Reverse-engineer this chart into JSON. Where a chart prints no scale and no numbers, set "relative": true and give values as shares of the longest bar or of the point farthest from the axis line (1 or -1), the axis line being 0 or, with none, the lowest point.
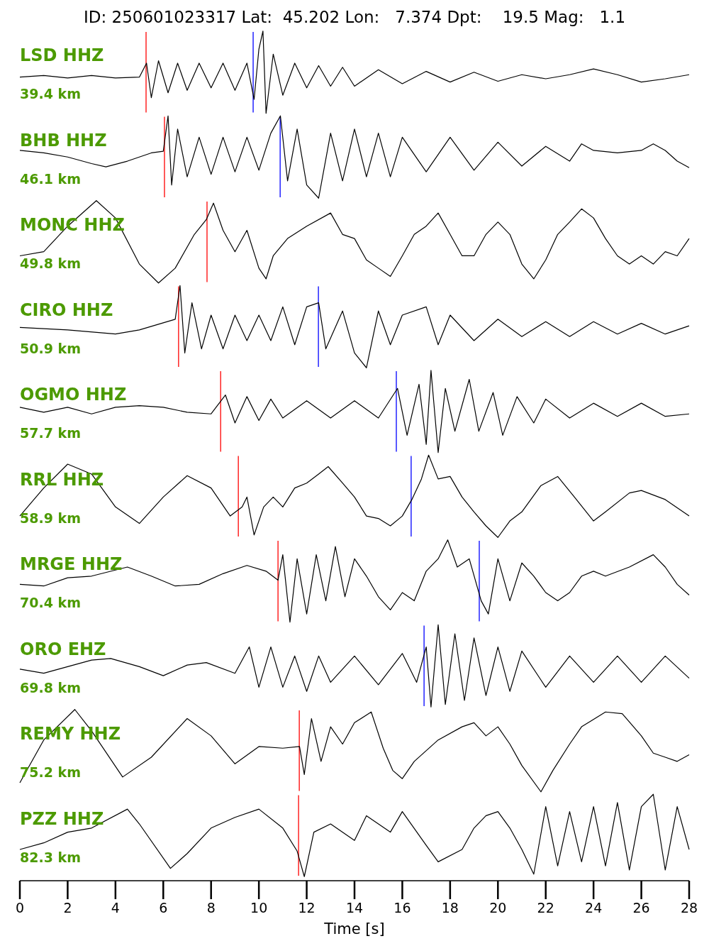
{
  "chart_data": [
    {
      "type": "line",
      "title": "ID: 250601023317 Lat:  45.202 Lon:   7.374 Dpt:    19.5 Mag:   1.1",
      "relative": true,
      "xlim": [
        0,
        28
      ],
      "tick_labels": false,
      "annotations": [
        "LSD HHZ",
        "39.4 km"
      ],
      "ref_lines": [
        {
          "axis": "x",
          "value": 5.28,
          "color": "#ff0000"
        },
        {
          "axis": "x",
          "value": 9.76,
          "color": "#0000ff"
        }
      ],
      "series": [
        {
          "color": "#000000",
          "x": [
            0,
            1,
            2,
            3,
            4,
            5,
            5.3,
            5.5,
            5.8,
            6.2,
            6.6,
            7,
            7.5,
            8,
            8.5,
            9,
            9.5,
            9.8,
            10,
            10.17,
            10.3,
            10.6,
            11,
            11.5,
            12,
            12.5,
            13,
            13.5,
            14,
            15,
            16,
            17,
            18,
            19,
            20,
            21,
            22,
            23,
            24,
            25,
            26,
            27,
            28
          ],
          "values": [
            0.44,
            0.46,
            0.43,
            0.46,
            0.43,
            0.44,
            0.61,
            0.19,
            0.64,
            0.25,
            0.61,
            0.28,
            0.61,
            0.31,
            0.61,
            0.28,
            0.61,
            0.17,
            0.78,
            1,
            0,
            0.72,
            0.22,
            0.61,
            0.31,
            0.58,
            0.33,
            0.56,
            0.33,
            0.53,
            0.36,
            0.51,
            0.38,
            0.5,
            0.39,
            0.47,
            0.42,
            0.47,
            0.54,
            0.47,
            0.38,
            0.42,
            0.47
          ]
        }
      ]
    },
    {
      "type": "line",
      "relative": true,
      "xlim": [
        0,
        28
      ],
      "tick_labels": false,
      "annotations": [
        "BHB HHZ",
        "46.1 km"
      ],
      "ref_lines": [
        {
          "axis": "x",
          "value": 6.05,
          "color": "#ff0000"
        },
        {
          "axis": "x",
          "value": 10.89,
          "color": "#0000ff"
        }
      ],
      "series": [
        {
          "color": "#000000",
          "x": [
            0,
            1,
            2,
            3,
            3.6,
            4.5,
            5.5,
            6,
            6.2,
            6.35,
            6.6,
            7,
            7.5,
            8,
            8.5,
            9,
            9.5,
            10,
            10.5,
            10.9,
            11.2,
            11.6,
            12,
            12.5,
            13,
            13.5,
            14,
            14.5,
            15,
            15.5,
            16,
            17,
            18,
            19,
            20,
            21,
            22,
            23,
            23.5,
            24,
            25,
            26,
            26.5,
            27,
            27.5,
            28
          ],
          "values": [
            0.58,
            0.55,
            0.5,
            0.42,
            0.38,
            0.45,
            0.55,
            0.57,
            1,
            0.16,
            0.84,
            0.26,
            0.74,
            0.29,
            0.74,
            0.32,
            0.74,
            0.34,
            0.79,
            1,
            0.21,
            0.84,
            0.16,
            0,
            0.79,
            0.21,
            0.84,
            0.26,
            0.79,
            0.26,
            0.74,
            0.32,
            0.74,
            0.34,
            0.68,
            0.39,
            0.63,
            0.45,
            0.66,
            0.58,
            0.55,
            0.58,
            0.66,
            0.58,
            0.45,
            0.37
          ]
        }
      ]
    },
    {
      "type": "line",
      "relative": true,
      "xlim": [
        0,
        28
      ],
      "tick_labels": false,
      "annotations": [
        "MONC HHZ",
        "49.8 km"
      ],
      "ref_lines": [
        {
          "axis": "x",
          "value": 7.83,
          "color": "#ff0000"
        }
      ],
      "series": [
        {
          "color": "#000000",
          "x": [
            0,
            1,
            2,
            3.2,
            4,
            5,
            5.8,
            6.5,
            7.3,
            7.8,
            8.1,
            8.5,
            9,
            9.5,
            10,
            10.3,
            10.6,
            11.2,
            12,
            13,
            13.5,
            14,
            14.5,
            15,
            15.5,
            16,
            16.5,
            17,
            17.5,
            18,
            18.5,
            19,
            19.5,
            20,
            20.5,
            21,
            21.5,
            22,
            22.5,
            23,
            23.5,
            24,
            24.5,
            25,
            25.5,
            26,
            26.5,
            27,
            27.5,
            28
          ],
          "values": [
            0.33,
            0.38,
            0.69,
            1,
            0.79,
            0.23,
            0,
            0.18,
            0.59,
            0.77,
            0.97,
            0.64,
            0.38,
            0.64,
            0.18,
            0.05,
            0.33,
            0.54,
            0.69,
            0.85,
            0.59,
            0.54,
            0.28,
            0.18,
            0.08,
            0.33,
            0.59,
            0.69,
            0.85,
            0.59,
            0.33,
            0.33,
            0.59,
            0.74,
            0.59,
            0.23,
            0.05,
            0.28,
            0.59,
            0.74,
            0.9,
            0.79,
            0.54,
            0.33,
            0.23,
            0.33,
            0.23,
            0.38,
            0.33,
            0.54
          ]
        }
      ]
    },
    {
      "type": "line",
      "relative": true,
      "xlim": [
        0,
        28
      ],
      "tick_labels": false,
      "annotations": [
        "CIRO HHZ",
        "50.9 km"
      ],
      "ref_lines": [
        {
          "axis": "x",
          "value": 6.64,
          "color": "#ff0000"
        },
        {
          "axis": "x",
          "value": 12.49,
          "color": "#0000ff"
        }
      ],
      "series": [
        {
          "color": "#000000",
          "x": [
            0,
            2,
            4,
            5,
            6.5,
            6.7,
            6.9,
            7.2,
            7.6,
            8,
            8.5,
            9,
            9.5,
            10,
            10.5,
            11,
            11.5,
            12,
            12.5,
            12.8,
            13.5,
            14,
            14.5,
            15,
            15.5,
            16,
            17,
            17.5,
            18,
            19,
            20,
            21,
            22,
            23,
            24,
            25,
            26,
            27,
            28
          ],
          "values": [
            0.49,
            0.46,
            0.41,
            0.46,
            0.59,
            1,
            0.18,
            0.79,
            0.23,
            0.64,
            0.23,
            0.64,
            0.33,
            0.64,
            0.33,
            0.74,
            0.28,
            0.74,
            0.79,
            0.23,
            0.69,
            0.18,
            0,
            0.69,
            0.28,
            0.64,
            0.74,
            0.28,
            0.64,
            0.33,
            0.59,
            0.38,
            0.56,
            0.38,
            0.56,
            0.41,
            0.54,
            0.41,
            0.51
          ]
        }
      ]
    },
    {
      "type": "line",
      "relative": true,
      "xlim": [
        0,
        28
      ],
      "tick_labels": false,
      "annotations": [
        "OGMO HHZ",
        "57.7 km"
      ],
      "ref_lines": [
        {
          "axis": "x",
          "value": 8.4,
          "color": "#ff0000"
        },
        {
          "axis": "x",
          "value": 15.75,
          "color": "#0000ff"
        }
      ],
      "series": [
        {
          "color": "#000000",
          "x": [
            0,
            1,
            2,
            3,
            4,
            5,
            6,
            7,
            8,
            8.6,
            9,
            9.5,
            10,
            10.5,
            11,
            12,
            13,
            14,
            15,
            15.8,
            16.2,
            16.7,
            17,
            17.2,
            17.5,
            17.8,
            18.2,
            18.8,
            19.2,
            19.8,
            20.2,
            20.8,
            21.5,
            22,
            23,
            24,
            25,
            26,
            27,
            28
          ],
          "values": [
            0.55,
            0.49,
            0.55,
            0.47,
            0.55,
            0.57,
            0.55,
            0.49,
            0.47,
            0.7,
            0.36,
            0.68,
            0.39,
            0.65,
            0.42,
            0.63,
            0.42,
            0.63,
            0.42,
            0.78,
            0.21,
            0.83,
            0.1,
            1,
            0,
            0.78,
            0.26,
            0.89,
            0.26,
            0.73,
            0.21,
            0.68,
            0.36,
            0.65,
            0.42,
            0.6,
            0.44,
            0.6,
            0.44,
            0.47
          ]
        }
      ]
    },
    {
      "type": "line",
      "relative": true,
      "xlim": [
        0,
        28
      ],
      "tick_labels": false,
      "annotations": [
        "RRL HHZ",
        "58.9 km"
      ],
      "ref_lines": [
        {
          "axis": "x",
          "value": 9.14,
          "color": "#ff0000"
        },
        {
          "axis": "x",
          "value": 16.37,
          "color": "#0000ff"
        }
      ],
      "series": [
        {
          "color": "#000000",
          "x": [
            0,
            1,
            2,
            3,
            4,
            5,
            6,
            7,
            8,
            8.8,
            9.3,
            9.5,
            9.8,
            10.2,
            10.6,
            11,
            11.5,
            12,
            12.5,
            12.9,
            13.5,
            14,
            14.5,
            15,
            15.5,
            16,
            16.4,
            16.8,
            17.1,
            17.5,
            18,
            18.5,
            19,
            19.5,
            20,
            20.5,
            21,
            21.8,
            22.5,
            23.2,
            24,
            24.5,
            25.5,
            26,
            27,
            28
          ],
          "values": [
            0.26,
            0.6,
            0.89,
            0.77,
            0.37,
            0.17,
            0.49,
            0.75,
            0.6,
            0.26,
            0.37,
            0.49,
            0.03,
            0.37,
            0.49,
            0.37,
            0.6,
            0.66,
            0.77,
            0.86,
            0.66,
            0.49,
            0.26,
            0.23,
            0.14,
            0.26,
            0.46,
            0.71,
            1,
            0.71,
            0.74,
            0.49,
            0.31,
            0.14,
            0,
            0.2,
            0.31,
            0.63,
            0.74,
            0.49,
            0.2,
            0.31,
            0.54,
            0.57,
            0.46,
            0.26
          ]
        }
      ]
    },
    {
      "type": "line",
      "relative": true,
      "xlim": [
        0,
        28
      ],
      "tick_labels": false,
      "annotations": [
        "MRGE HHZ",
        "70.4 km"
      ],
      "ref_lines": [
        {
          "axis": "x",
          "value": 10.8,
          "color": "#ff0000"
        },
        {
          "axis": "x",
          "value": 19.22,
          "color": "#0000ff"
        }
      ],
      "series": [
        {
          "color": "#000000",
          "x": [
            0,
            1,
            2,
            3,
            4.5,
            5.5,
            6.5,
            7.5,
            8.5,
            9.5,
            10.3,
            10.8,
            11,
            11.3,
            11.6,
            12,
            12.4,
            12.8,
            13.2,
            13.6,
            14,
            14.5,
            15,
            15.5,
            16,
            16.5,
            17,
            17.5,
            17.9,
            18.3,
            18.8,
            19.3,
            19.6,
            20,
            20.5,
            21,
            21.5,
            22,
            22.5,
            23,
            23.5,
            24,
            24.5,
            25.5,
            26.5,
            27,
            27.5,
            28
          ],
          "values": [
            0.46,
            0.44,
            0.54,
            0.56,
            0.67,
            0.56,
            0.44,
            0.46,
            0.59,
            0.69,
            0.62,
            0.51,
            0.82,
            0,
            0.77,
            0.1,
            0.82,
            0.26,
            0.92,
            0.31,
            0.77,
            0.56,
            0.31,
            0.15,
            0.36,
            0.26,
            0.62,
            0.77,
            1,
            0.67,
            0.77,
            0.26,
            0.1,
            0.77,
            0.26,
            0.72,
            0.56,
            0.36,
            0.26,
            0.36,
            0.56,
            0.62,
            0.56,
            0.67,
            0.82,
            0.67,
            0.46,
            0.33
          ]
        }
      ]
    },
    {
      "type": "line",
      "relative": true,
      "xlim": [
        0,
        28
      ],
      "tick_labels": false,
      "annotations": [
        "ORO EHZ",
        "69.8 km"
      ],
      "ref_lines": [
        {
          "axis": "x",
          "value": 16.91,
          "color": "#0000ff"
        }
      ],
      "series": [
        {
          "color": "#000000",
          "x": [
            0,
            1,
            2,
            3,
            3.8,
            5,
            6,
            7,
            7.8,
            9,
            9.6,
            10,
            10.5,
            11,
            11.5,
            12,
            12.5,
            13,
            14,
            15,
            16,
            16.6,
            17,
            17.2,
            17.5,
            17.8,
            18.2,
            18.6,
            19,
            19.5,
            20,
            20.5,
            21,
            22,
            23,
            24,
            25,
            26,
            27,
            28
          ],
          "values": [
            0.46,
            0.41,
            0.49,
            0.57,
            0.59,
            0.49,
            0.38,
            0.51,
            0.54,
            0.41,
            0.73,
            0.24,
            0.73,
            0.24,
            0.62,
            0.19,
            0.62,
            0.3,
            0.62,
            0.27,
            0.65,
            0.3,
            0.73,
            0,
            1,
            0.03,
            0.89,
            0.08,
            0.84,
            0.14,
            0.73,
            0.19,
            0.68,
            0.24,
            0.62,
            0.3,
            0.62,
            0.3,
            0.62,
            0.35
          ]
        }
      ]
    },
    {
      "type": "line",
      "relative": true,
      "xlim": [
        0,
        28
      ],
      "tick_labels": false,
      "annotations": [
        "REMY HHZ",
        "75.2 km"
      ],
      "ref_lines": [
        {
          "axis": "x",
          "value": 11.69,
          "color": "#ff0000"
        }
      ],
      "series": [
        {
          "color": "#000000",
          "x": [
            0,
            1,
            2.3,
            3,
            4.3,
            5.5,
            7,
            8,
            9,
            10,
            11,
            11.7,
            11.9,
            12.2,
            12.6,
            13,
            13.5,
            14,
            14.7,
            15.2,
            15.6,
            16,
            16.5,
            17.5,
            18.5,
            19,
            19.5,
            20,
            20.5,
            21,
            21.8,
            22.3,
            23,
            23.5,
            24.5,
            25.2,
            26,
            26.5,
            27,
            27.5,
            28
          ],
          "values": [
            0.11,
            0.63,
            1,
            0.74,
            0.18,
            0.42,
            0.89,
            0.68,
            0.34,
            0.55,
            0.53,
            0.55,
            0.21,
            0.89,
            0.37,
            0.79,
            0.58,
            0.84,
            0.97,
            0.53,
            0.26,
            0.16,
            0.37,
            0.63,
            0.79,
            0.84,
            0.68,
            0.79,
            0.58,
            0.32,
            0,
            0.26,
            0.58,
            0.79,
            0.97,
            0.95,
            0.68,
            0.47,
            0.42,
            0.37,
            0.45
          ]
        }
      ]
    },
    {
      "type": "line",
      "relative": true,
      "xlim": [
        0,
        28
      ],
      "xlabel": "Time [s]",
      "annotations": [
        "PZZ HHZ",
        "82.3 km"
      ],
      "ref_lines": [
        {
          "axis": "x",
          "value": 11.66,
          "color": "#ff0000"
        }
      ],
      "xticks": [
        0,
        2,
        4,
        6,
        8,
        10,
        12,
        14,
        16,
        18,
        20,
        22,
        24,
        26,
        28
      ],
      "series": [
        {
          "color": "#000000",
          "x": [
            0,
            1,
            2,
            3,
            4.5,
            5,
            6.3,
            7,
            8,
            9,
            10,
            11,
            11.6,
            11.9,
            12.3,
            13,
            14,
            14.5,
            15.5,
            16,
            17,
            17.5,
            18.5,
            19,
            19.5,
            20,
            20.5,
            21,
            21.5,
            22,
            22.5,
            23,
            23.5,
            24,
            24.5,
            25,
            25.5,
            26,
            26.5,
            27,
            27.5,
            28
          ],
          "values": [
            0.33,
            0.41,
            0.54,
            0.59,
            0.82,
            0.64,
            0.1,
            0.28,
            0.59,
            0.72,
            0.82,
            0.59,
            0.31,
            0,
            0.54,
            0.64,
            0.44,
            0.74,
            0.54,
            0.79,
            0.38,
            0.18,
            0.33,
            0.59,
            0.74,
            0.79,
            0.59,
            0.33,
            0.03,
            0.85,
            0.13,
            0.79,
            0.18,
            0.85,
            0.13,
            0.9,
            0.08,
            0.85,
            1,
            0.08,
            0.85,
            0.33
          ]
        }
      ]
    }
  ]
}
